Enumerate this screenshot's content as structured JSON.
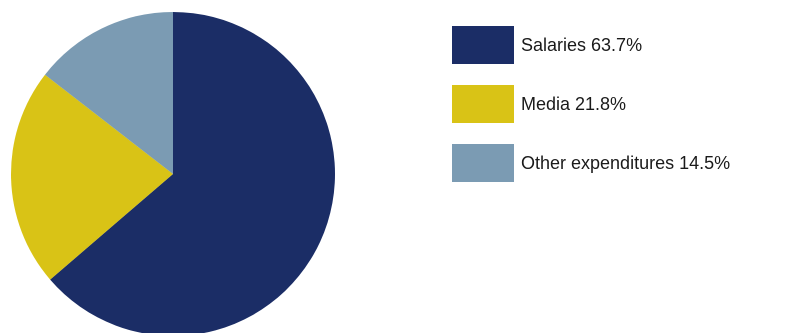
{
  "chart_data": {
    "type": "pie",
    "start_angle_deg": 0,
    "direction": "clockwise",
    "slices": [
      {
        "label": "Salaries 63.7%",
        "value": 63.7,
        "color": "#1b2d66"
      },
      {
        "label": "Media 21.8%",
        "value": 21.8,
        "color": "#d9c316"
      },
      {
        "label": "Other expenditures 14.5%",
        "value": 14.5,
        "color": "#7b9bb3"
      }
    ],
    "legend_position": "right"
  }
}
